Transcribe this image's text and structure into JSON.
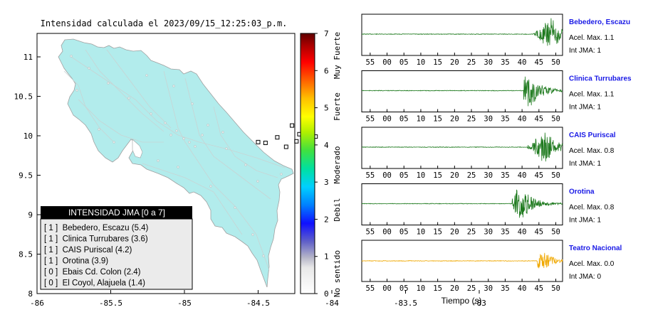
{
  "map": {
    "title": "Intensidad calculada el 2023/09/15_12:25:03_p.m.",
    "x_ticks": [
      "-86",
      "-85.5",
      "-85",
      "-84.5",
      "-84",
      "-83.5",
      "-83"
    ],
    "y_ticks": [
      "11",
      "10.5",
      "10",
      "9.5",
      "9",
      "8.5",
      "8"
    ],
    "land_color": "#b2ecec",
    "stations": [
      {
        "lon": -84.27,
        "lat": 10.13
      },
      {
        "lon": -84.22,
        "lat": 10.02
      },
      {
        "lon": -84.37,
        "lat": 9.98
      },
      {
        "lon": -84.11,
        "lat": 9.99
      },
      {
        "lon": -84.24,
        "lat": 9.93
      },
      {
        "lon": -84.5,
        "lat": 9.92
      },
      {
        "lon": -84.45,
        "lat": 9.91
      },
      {
        "lon": -84.31,
        "lat": 9.86
      },
      {
        "lon": -84.13,
        "lat": 9.89
      }
    ]
  },
  "legend": {
    "title": "INTENSIDAD JMA [0 a 7]",
    "items": [
      "[ 1 ]  Bebedero, Escazu (5.4)",
      "[ 1 ]  Clinica Turrubares (3.6)",
      "[ 1 ]  CAIS Puriscal (4.2)",
      "[ 1 ]  Orotina (3.9)",
      "[ 0 ]  Ebais Cd. Colon (2.4)",
      "[ 0 ]  El Coyol, Alajuela (1.4)"
    ]
  },
  "colorbar": {
    "ticks": [
      "7",
      "6",
      "5",
      "4",
      "3",
      "2",
      "1",
      "0"
    ],
    "labels": [
      "Muy Fuerte",
      "Fuerte",
      "Moderado",
      "Debil",
      "No sentido"
    ]
  },
  "waveforms": {
    "x_ticks": [
      "55",
      "00",
      "05",
      "10",
      "15",
      "20",
      "25",
      "30",
      "35",
      "40",
      "45",
      "50"
    ],
    "xlabel": "Tiempo (s)",
    "panels": [
      {
        "station": "Bebedero, Escazu",
        "acel": "Acel. Max. 1.1",
        "int": "Int JMA: 1",
        "color": "#1e7a1e",
        "onset": 43,
        "peak": 48.5
      },
      {
        "station": "Clinica Turrubares",
        "acel": "Acel. Max. 1.1",
        "int": "Int JMA: 1",
        "color": "#1e7a1e",
        "onset": 40.5,
        "peak": 42
      },
      {
        "station": "CAIS Puriscal",
        "acel": "Acel. Max. 0.8",
        "int": "Int JMA: 1",
        "color": "#1e7a1e",
        "onset": 41.5,
        "peak": 46.5
      },
      {
        "station": "Orotina",
        "acel": "Acel. Max. 0.8",
        "int": "Int JMA: 1",
        "color": "#1e7a1e",
        "onset": 37,
        "peak": 39.5
      },
      {
        "station": "Teatro Nacional",
        "acel": "Acel. Max. 0.0",
        "int": "Int JMA: 0",
        "color": "#f0a800",
        "onset": 44.5,
        "peak": 46
      }
    ]
  },
  "chart_data": [
    {
      "type": "scatter",
      "title": "Intensidad calculada el 2023/09/15_12:25:03_p.m.",
      "xlabel": "",
      "ylabel": "",
      "xlim": [
        -86,
        -82.5
      ],
      "ylim": [
        8,
        11.3
      ],
      "series": [
        {
          "values": [
            [
              -84.27,
              10.13
            ],
            [
              -84.22,
              10.02
            ],
            [
              -84.37,
              9.98
            ],
            [
              -84.11,
              9.99
            ],
            [
              -84.24,
              9.93
            ],
            [
              -84.5,
              9.92
            ],
            [
              -84.45,
              9.91
            ],
            [
              -84.31,
              9.86
            ],
            [
              -84.13,
              9.89
            ]
          ]
        }
      ],
      "colorbar_range": [
        0,
        7
      ],
      "grid": false
    },
    {
      "type": "line",
      "title": "",
      "xlabel": "Tiempo (s)",
      "ylabel": "",
      "x_ticks": [
        "55",
        "00",
        "05",
        "10",
        "15",
        "20",
        "25",
        "30",
        "35",
        "40",
        "45",
        "50"
      ],
      "series": [
        {
          "name": "Bebedero, Escazu",
          "peak": 1.1
        },
        {
          "name": "Clinica Turrubares",
          "peak": 1.1
        },
        {
          "name": "CAIS Puriscal",
          "peak": 0.8
        },
        {
          "name": "Orotina",
          "peak": 0.8
        },
        {
          "name": "Teatro Nacional",
          "peak": 0.0
        }
      ]
    }
  ]
}
